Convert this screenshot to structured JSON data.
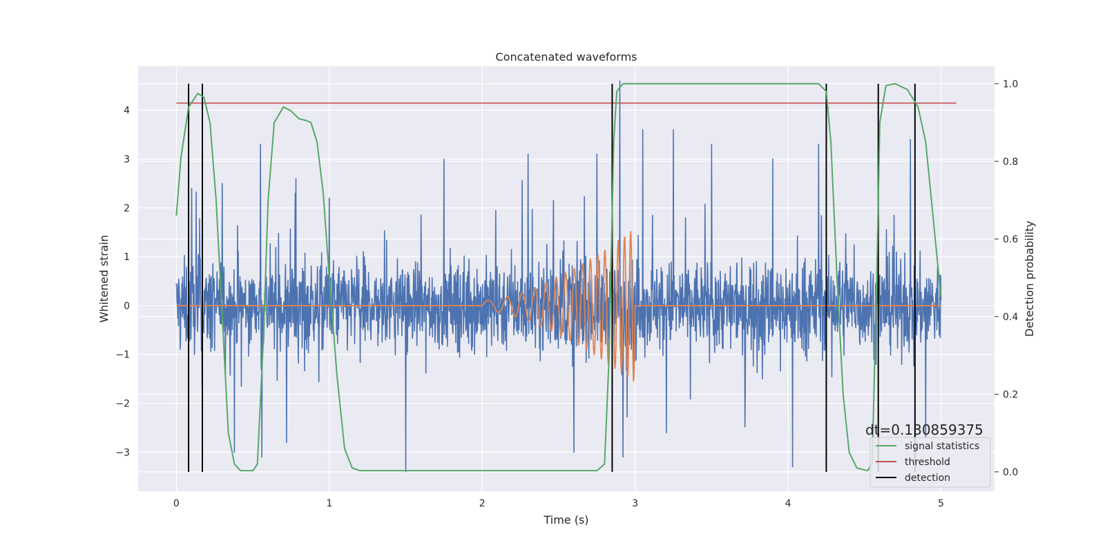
{
  "chart_data": {
    "type": "line",
    "title": "Concatenated waveforms",
    "xlabel": "Time (s)",
    "ylabel": "Whitened strain",
    "y2label": "Detection probability",
    "xlim": [
      -0.25,
      5.35
    ],
    "ylim": [
      -3.8,
      4.9
    ],
    "y2lim": [
      -0.05,
      1.045
    ],
    "xticks": [
      0,
      1,
      2,
      3,
      4,
      5
    ],
    "yticks": [
      -3,
      -2,
      -1,
      0,
      1,
      2,
      3,
      4
    ],
    "y2ticks": [
      0.0,
      0.2,
      0.4,
      0.6,
      0.8,
      1.0
    ],
    "grid": true,
    "legend_position": "lower-right",
    "annotation": "dt=0.130859375",
    "series": [
      {
        "kind": "noise",
        "color": "#4c72b0",
        "axis": "left",
        "x_range": [
          0,
          5
        ],
        "peaks": [
          {
            "x": 0.1,
            "y": 2.4
          },
          {
            "x": 0.3,
            "y": 2.5
          },
          {
            "x": 0.38,
            "y": -3.0
          },
          {
            "x": 0.55,
            "y": 3.3
          },
          {
            "x": 0.56,
            "y": -3.1
          },
          {
            "x": 0.72,
            "y": -2.8
          },
          {
            "x": 1.0,
            "y": 2.2
          },
          {
            "x": 1.5,
            "y": -3.4
          },
          {
            "x": 1.75,
            "y": 3.0
          },
          {
            "x": 2.3,
            "y": 3.1
          },
          {
            "x": 2.6,
            "y": -3.0
          },
          {
            "x": 2.75,
            "y": 3.1
          },
          {
            "x": 2.9,
            "y": 4.6
          },
          {
            "x": 2.92,
            "y": -3.1
          },
          {
            "x": 3.05,
            "y": 3.6
          },
          {
            "x": 3.25,
            "y": 3.6
          },
          {
            "x": 3.5,
            "y": 3.3
          },
          {
            "x": 3.9,
            "y": 3.0
          },
          {
            "x": 4.03,
            "y": -3.3
          },
          {
            "x": 4.2,
            "y": 3.3
          },
          {
            "x": 4.8,
            "y": 3.4
          },
          {
            "x": 4.9,
            "y": -2.7
          }
        ]
      },
      {
        "kind": "chirp",
        "color": "#dd8452",
        "axis": "left",
        "x_range": [
          0,
          5
        ],
        "chirp_start": 2.0,
        "chirp_end": 3.0,
        "max_amplitude": 1.6
      },
      {
        "name": "signal statistics",
        "kind": "line",
        "color": "#55a868",
        "axis": "right",
        "points": [
          [
            0.0,
            0.66
          ],
          [
            0.03,
            0.81
          ],
          [
            0.08,
            0.94
          ],
          [
            0.14,
            0.975
          ],
          [
            0.18,
            0.965
          ],
          [
            0.22,
            0.9
          ],
          [
            0.26,
            0.7
          ],
          [
            0.3,
            0.4
          ],
          [
            0.34,
            0.1
          ],
          [
            0.38,
            0.02
          ],
          [
            0.42,
            0.003
          ],
          [
            0.5,
            0.003
          ],
          [
            0.53,
            0.02
          ],
          [
            0.57,
            0.35
          ],
          [
            0.6,
            0.7
          ],
          [
            0.64,
            0.9
          ],
          [
            0.7,
            0.94
          ],
          [
            0.75,
            0.93
          ],
          [
            0.8,
            0.91
          ],
          [
            0.85,
            0.905
          ],
          [
            0.88,
            0.9
          ],
          [
            0.92,
            0.85
          ],
          [
            0.96,
            0.72
          ],
          [
            1.0,
            0.5
          ],
          [
            1.05,
            0.25
          ],
          [
            1.1,
            0.06
          ],
          [
            1.15,
            0.01
          ],
          [
            1.2,
            0.003
          ],
          [
            2.75,
            0.003
          ],
          [
            2.8,
            0.02
          ],
          [
            2.83,
            0.3
          ],
          [
            2.86,
            0.85
          ],
          [
            2.88,
            0.98
          ],
          [
            2.92,
            1.0
          ],
          [
            4.2,
            1.0
          ],
          [
            4.25,
            0.98
          ],
          [
            4.28,
            0.85
          ],
          [
            4.32,
            0.5
          ],
          [
            4.36,
            0.2
          ],
          [
            4.4,
            0.05
          ],
          [
            4.45,
            0.01
          ],
          [
            4.52,
            0.003
          ],
          [
            4.55,
            0.02
          ],
          [
            4.58,
            0.5
          ],
          [
            4.6,
            0.9
          ],
          [
            4.64,
            0.995
          ],
          [
            4.7,
            1.0
          ],
          [
            4.78,
            0.985
          ],
          [
            4.85,
            0.94
          ],
          [
            4.9,
            0.85
          ],
          [
            4.95,
            0.65
          ],
          [
            5.0,
            0.45
          ]
        ]
      },
      {
        "name": "threshold",
        "kind": "hline",
        "color": "#c44e52",
        "axis": "right",
        "value": 0.95,
        "x_range": [
          0,
          5.1
        ]
      },
      {
        "name": "detection",
        "kind": "vlines",
        "color": "#000000",
        "axis": "right",
        "x": [
          0.08,
          0.17,
          2.85,
          4.25,
          4.59,
          4.83
        ],
        "y_range": [
          0.0,
          1.0
        ]
      }
    ]
  }
}
